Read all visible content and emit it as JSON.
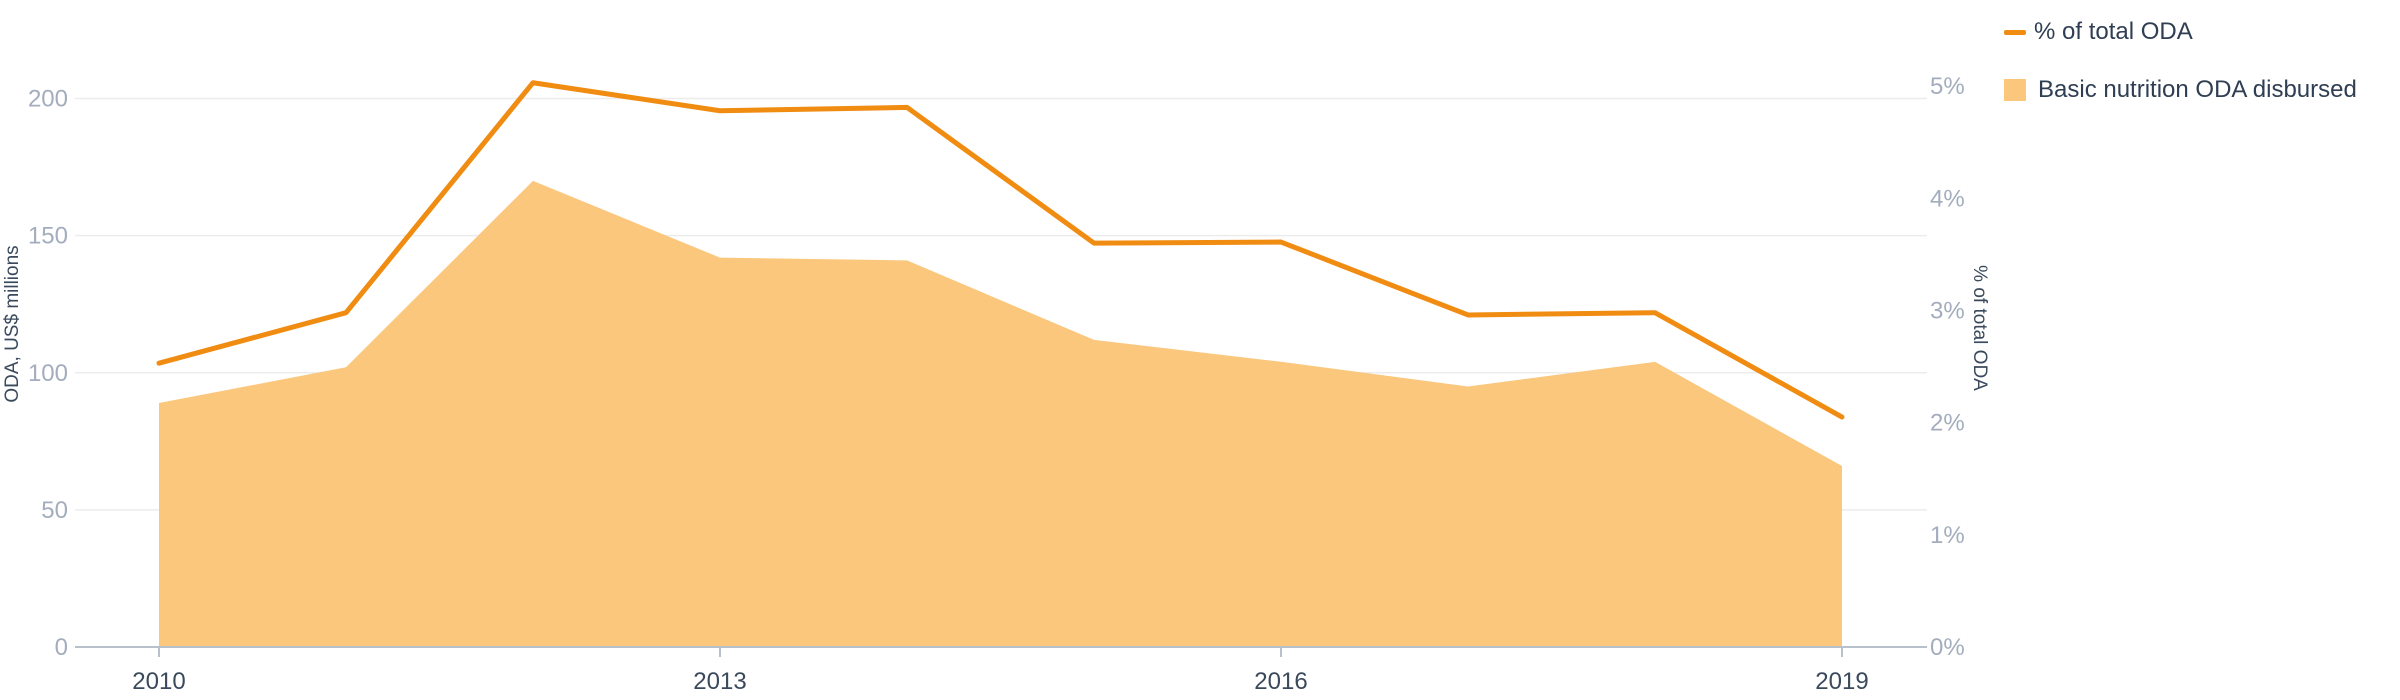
{
  "chart_data": {
    "type": "area",
    "x": [
      2010,
      2011,
      2012,
      2013,
      2014,
      2015,
      2016,
      2017,
      2018,
      2019
    ],
    "x_tick_labels": [
      "2010",
      "2013",
      "2016",
      "2019"
    ],
    "series": [
      {
        "name": "Basic nutrition ODA disbursed",
        "type": "area",
        "axis": "left",
        "color": "#fac77d",
        "values": [
          89,
          102,
          170,
          142,
          141,
          112,
          104,
          95,
          104,
          66
        ]
      },
      {
        "name": "% of total ODA",
        "type": "line",
        "axis": "right",
        "color": "#f08c12",
        "values": [
          2.53,
          2.98,
          5.03,
          4.78,
          4.81,
          3.6,
          3.61,
          2.96,
          2.98,
          2.05
        ]
      }
    ],
    "y_left": {
      "label": "ODA, US$ millions",
      "ylim": [
        0,
        225
      ],
      "ticks": [
        0,
        50,
        100,
        150,
        200
      ],
      "tick_labels": [
        "0",
        "50",
        "100",
        "150",
        "200"
      ]
    },
    "y_right": {
      "label": "% of total ODA",
      "ylim": [
        0,
        5.5
      ],
      "ticks": [
        0,
        1,
        2,
        3,
        4,
        5
      ],
      "tick_labels": [
        "0%",
        "1%",
        "2%",
        "3%",
        "4%",
        "5%"
      ]
    },
    "grid": true,
    "legend_position": "top-right"
  }
}
